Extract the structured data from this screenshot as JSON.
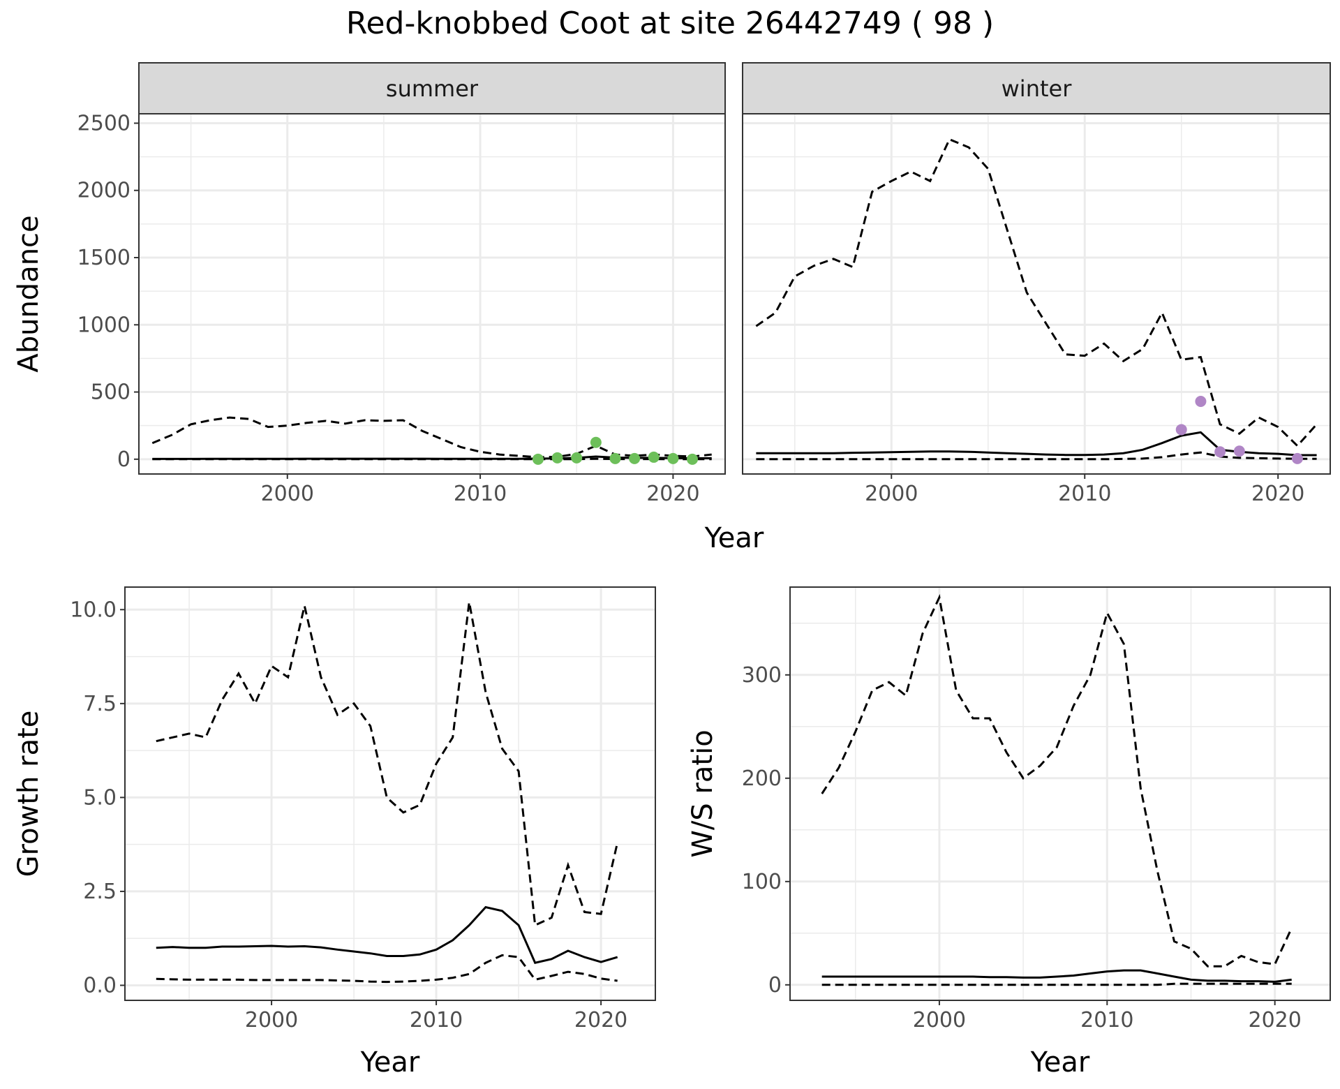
{
  "title": "Red-knobbed Coot at site 26442749 ( 98 )",
  "chart_data": [
    {
      "id": "abundance",
      "type": "line",
      "facets": [
        "summer",
        "winter"
      ],
      "xlabel": "Year",
      "ylabel": "Abundance",
      "xlim": [
        1992.3,
        2022.7
      ],
      "ylim": [
        -110,
        2570
      ],
      "xticks": [
        2000,
        2010,
        2020
      ],
      "yticks": [
        0,
        500,
        1000,
        1500,
        2000,
        2500
      ],
      "grid": true,
      "panels": [
        {
          "facet": "summer",
          "point_color": "#6dbf5a",
          "x": [
            1993,
            1994,
            1995,
            1996,
            1997,
            1998,
            1999,
            2000,
            2001,
            2002,
            2003,
            2004,
            2005,
            2006,
            2007,
            2008,
            2009,
            2010,
            2011,
            2012,
            2013,
            2014,
            2015,
            2016,
            2017,
            2018,
            2019,
            2020,
            2021,
            2022
          ],
          "series": [
            {
              "style": "upper",
              "values": [
                120,
                180,
                260,
                290,
                310,
                300,
                240,
                250,
                270,
                285,
                265,
                290,
                285,
                290,
                210,
                150,
                90,
                55,
                35,
                25,
                15,
                18,
                40,
                100,
                35,
                25,
                35,
                25,
                20,
                35
              ]
            },
            {
              "style": "estimate",
              "values": [
                2,
                2,
                2,
                3,
                3,
                3,
                3,
                3,
                4,
                4,
                4,
                4,
                4,
                4,
                4,
                3,
                3,
                3,
                3,
                3,
                5,
                6,
                10,
                20,
                12,
                10,
                10,
                8,
                7,
                8
              ]
            },
            {
              "style": "lower",
              "values": [
                0,
                0,
                0,
                0,
                0,
                0,
                0,
                0,
                0,
                0,
                0,
                0,
                0,
                0,
                0,
                0,
                0,
                0,
                0,
                0,
                0,
                0,
                0,
                3,
                1,
                1,
                1,
                0,
                0,
                0
              ]
            }
          ],
          "points": {
            "x": [
              2013,
              2014,
              2015,
              2016,
              2017,
              2018,
              2019,
              2020,
              2021
            ],
            "y": [
              0,
              10,
              10,
              125,
              5,
              5,
              15,
              5,
              0
            ]
          }
        },
        {
          "facet": "winter",
          "point_color": "#b086c6",
          "x": [
            1993,
            1994,
            1995,
            1996,
            1997,
            1998,
            1999,
            2000,
            2001,
            2002,
            2003,
            2004,
            2005,
            2006,
            2007,
            2008,
            2009,
            2010,
            2011,
            2012,
            2013,
            2014,
            2015,
            2016,
            2017,
            2018,
            2019,
            2020,
            2021,
            2022
          ],
          "series": [
            {
              "style": "upper",
              "values": [
                990,
                1090,
                1360,
                1440,
                1490,
                1430,
                1990,
                2070,
                2140,
                2070,
                2380,
                2320,
                2160,
                1700,
                1240,
                1010,
                780,
                770,
                860,
                730,
                820,
                1090,
                740,
                760,
                260,
                190,
                310,
                240,
                100,
                260
              ]
            },
            {
              "style": "estimate",
              "values": [
                45,
                45,
                45,
                45,
                45,
                48,
                50,
                52,
                55,
                58,
                58,
                55,
                50,
                45,
                40,
                35,
                32,
                32,
                35,
                45,
                70,
                120,
                175,
                200,
                70,
                55,
                45,
                40,
                30,
                30
              ]
            },
            {
              "style": "lower",
              "values": [
                0,
                0,
                0,
                0,
                0,
                0,
                0,
                0,
                0,
                0,
                0,
                0,
                0,
                0,
                0,
                0,
                0,
                0,
                0,
                2,
                5,
                15,
                35,
                50,
                20,
                10,
                8,
                5,
                3,
                3
              ]
            }
          ],
          "points": {
            "x": [
              2015,
              2016,
              2017,
              2018,
              2021
            ],
            "y": [
              220,
              430,
              55,
              60,
              5
            ]
          }
        }
      ]
    },
    {
      "id": "growth",
      "type": "line",
      "xlabel": "Year",
      "ylabel": "Growth rate",
      "xlim": [
        1991.1,
        2023.3
      ],
      "ylim": [
        -0.4,
        10.6
      ],
      "xticks": [
        2000,
        2010,
        2020
      ],
      "yticks": [
        0.0,
        2.5,
        5.0,
        7.5,
        10.0
      ],
      "ytick_labels": [
        "0.0",
        "2.5",
        "5.0",
        "7.5",
        "10.0"
      ],
      "grid": true,
      "x": [
        1993,
        1994,
        1995,
        1996,
        1997,
        1998,
        1999,
        2000,
        2001,
        2002,
        2003,
        2004,
        2005,
        2006,
        2007,
        2008,
        2009,
        2010,
        2011,
        2012,
        2013,
        2014,
        2015,
        2016,
        2017,
        2018,
        2019,
        2020,
        2021
      ],
      "series": [
        {
          "style": "upper",
          "values": [
            6.5,
            6.6,
            6.7,
            6.6,
            7.6,
            8.3,
            7.5,
            8.5,
            8.2,
            10.1,
            8.2,
            7.2,
            7.5,
            6.9,
            5.0,
            4.6,
            4.8,
            5.9,
            6.6,
            10.2,
            7.8,
            6.3,
            5.7,
            1.6,
            1.8,
            3.2,
            1.95,
            1.9,
            3.8
          ]
        },
        {
          "style": "estimate",
          "values": [
            1.0,
            1.02,
            1.0,
            1.0,
            1.03,
            1.03,
            1.04,
            1.05,
            1.03,
            1.04,
            1.01,
            0.95,
            0.9,
            0.85,
            0.78,
            0.78,
            0.82,
            0.95,
            1.2,
            1.6,
            2.08,
            1.98,
            1.6,
            0.6,
            0.7,
            0.92,
            0.75,
            0.62,
            0.75
          ]
        },
        {
          "style": "lower",
          "values": [
            0.17,
            0.16,
            0.15,
            0.15,
            0.15,
            0.15,
            0.14,
            0.14,
            0.14,
            0.14,
            0.14,
            0.13,
            0.12,
            0.1,
            0.09,
            0.1,
            0.12,
            0.15,
            0.2,
            0.3,
            0.6,
            0.8,
            0.75,
            0.15,
            0.25,
            0.36,
            0.3,
            0.18,
            0.12
          ]
        }
      ]
    },
    {
      "id": "ws_ratio",
      "type": "line",
      "xlabel": "Year",
      "ylabel": "W/S ratio",
      "xlim": [
        1991.1,
        2023.3
      ],
      "ylim": [
        -15,
        385
      ],
      "xticks": [
        2000,
        2010,
        2020
      ],
      "yticks": [
        0,
        100,
        200,
        300
      ],
      "grid": true,
      "x": [
        1993,
        1994,
        1995,
        1996,
        1997,
        1998,
        1999,
        2000,
        2001,
        2002,
        2003,
        2004,
        2005,
        2006,
        2007,
        2008,
        2009,
        2010,
        2011,
        2012,
        2013,
        2014,
        2015,
        2016,
        2017,
        2018,
        2019,
        2020,
        2021
      ],
      "series": [
        {
          "style": "upper",
          "values": [
            185,
            210,
            245,
            285,
            293,
            280,
            340,
            375,
            285,
            258,
            258,
            225,
            200,
            212,
            230,
            270,
            300,
            360,
            330,
            190,
            110,
            42,
            35,
            18,
            18,
            28,
            22,
            20,
            55
          ]
        },
        {
          "style": "estimate",
          "values": [
            8,
            8,
            8,
            8,
            8,
            8,
            8,
            8,
            8,
            8,
            7.5,
            7.5,
            7,
            7,
            8,
            9,
            11,
            13,
            14,
            14,
            11,
            8,
            5,
            4,
            4,
            3.5,
            3.5,
            3,
            5
          ]
        },
        {
          "style": "lower",
          "values": [
            0,
            0,
            0,
            0,
            0,
            0,
            0,
            0,
            0,
            0,
            0,
            0,
            0,
            0,
            0,
            0,
            0,
            0,
            0,
            0,
            0,
            1,
            1,
            1,
            1,
            1,
            1,
            1,
            1
          ]
        }
      ]
    }
  ]
}
